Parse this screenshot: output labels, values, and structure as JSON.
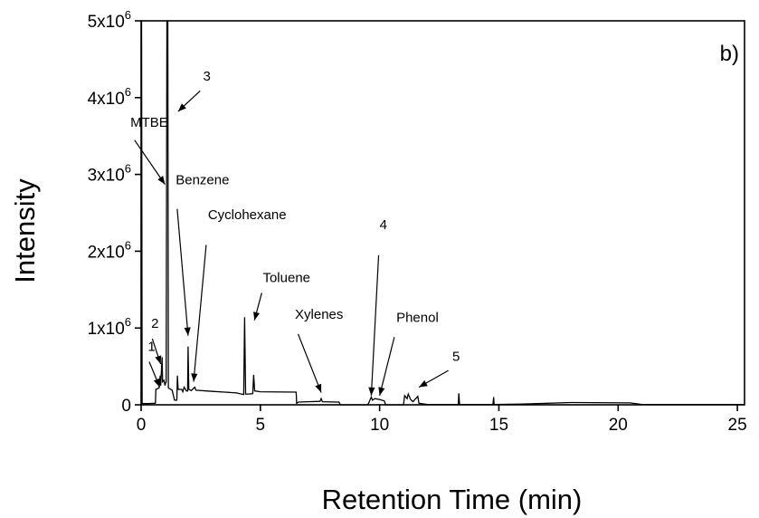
{
  "chart_data": {
    "type": "line",
    "panel_label": "b)",
    "xlabel": "Retention Time  (min)",
    "ylabel": "Intensity",
    "xlim": [
      0,
      25.3
    ],
    "ylim": [
      0,
      5000000
    ],
    "x_ticks": [
      {
        "value": 0,
        "label": "0"
      },
      {
        "value": 5,
        "label": "5"
      },
      {
        "value": 10,
        "label": "10"
      },
      {
        "value": 15,
        "label": "15"
      },
      {
        "value": 20,
        "label": "20"
      },
      {
        "value": 25,
        "label": "25"
      }
    ],
    "y_ticks": [
      {
        "value": 0,
        "label_base": "0",
        "label_exp": ""
      },
      {
        "value": 1000000,
        "label_base": "1x10",
        "label_exp": "6"
      },
      {
        "value": 2000000,
        "label_base": "2x10",
        "label_exp": "6"
      },
      {
        "value": 3000000,
        "label_base": "3x10",
        "label_exp": "6"
      },
      {
        "value": 4000000,
        "label_base": "4x10",
        "label_exp": "6"
      },
      {
        "value": 5000000,
        "label_base": "5x10",
        "label_exp": "6"
      }
    ],
    "grid": false,
    "series": [
      {
        "color": "#000000",
        "points": [
          [
            0,
            5000000
          ],
          [
            0.02,
            5000000
          ],
          [
            0.04,
            15000
          ],
          [
            0.3,
            15000
          ],
          [
            0.6,
            20000
          ],
          [
            0.62,
            200000
          ],
          [
            0.75,
            220000
          ],
          [
            0.8,
            380000
          ],
          [
            0.82,
            250000
          ],
          [
            0.88,
            620000
          ],
          [
            0.9,
            300000
          ],
          [
            0.96,
            320000
          ],
          [
            1.0,
            250000
          ],
          [
            1.02,
            280000
          ],
          [
            1.05,
            300000
          ],
          [
            1.08,
            5000000
          ],
          [
            1.12,
            5000000
          ],
          [
            1.14,
            220000
          ],
          [
            1.3,
            190000
          ],
          [
            1.4,
            60000
          ],
          [
            1.5,
            60000
          ],
          [
            1.52,
            380000
          ],
          [
            1.55,
            200000
          ],
          [
            1.7,
            200000
          ],
          [
            1.75,
            170000
          ],
          [
            1.8,
            230000
          ],
          [
            1.9,
            180000
          ],
          [
            1.95,
            180000
          ],
          [
            1.97,
            760000
          ],
          [
            2.0,
            200000
          ],
          [
            2.1,
            185000
          ],
          [
            2.25,
            230000
          ],
          [
            2.3,
            190000
          ],
          [
            3.0,
            175000
          ],
          [
            3.5,
            165000
          ],
          [
            4.0,
            155000
          ],
          [
            4.2,
            140000
          ],
          [
            4.3,
            135000
          ],
          [
            4.34,
            1140000
          ],
          [
            4.38,
            140000
          ],
          [
            4.5,
            140000
          ],
          [
            4.68,
            145000
          ],
          [
            4.72,
            390000
          ],
          [
            4.76,
            180000
          ],
          [
            5.0,
            170000
          ],
          [
            6.5,
            165000
          ],
          [
            6.52,
            20000
          ],
          [
            6.6,
            35000
          ],
          [
            7.0,
            40000
          ],
          [
            7.5,
            45000
          ],
          [
            7.55,
            80000
          ],
          [
            7.6,
            40000
          ],
          [
            8.3,
            35000
          ],
          [
            8.35,
            0
          ],
          [
            9.5,
            0
          ],
          [
            9.55,
            30000
          ],
          [
            9.65,
            100000
          ],
          [
            9.7,
            60000
          ],
          [
            9.8,
            80000
          ],
          [
            10.0,
            70000
          ],
          [
            10.2,
            50000
          ],
          [
            10.25,
            0
          ],
          [
            11.0,
            0
          ],
          [
            11.05,
            120000
          ],
          [
            11.15,
            80000
          ],
          [
            11.2,
            140000
          ],
          [
            11.3,
            70000
          ],
          [
            11.4,
            40000
          ],
          [
            11.6,
            110000
          ],
          [
            11.65,
            20000
          ],
          [
            12.0,
            5000
          ],
          [
            13.3,
            5000
          ],
          [
            13.32,
            150000
          ],
          [
            13.35,
            5000
          ],
          [
            14.75,
            5000
          ],
          [
            14.78,
            100000
          ],
          [
            14.8,
            5000
          ],
          [
            16.0,
            10000
          ],
          [
            18.0,
            30000
          ],
          [
            20.5,
            25000
          ],
          [
            21.0,
            5000
          ],
          [
            25.3,
            5000
          ]
        ]
      }
    ],
    "annotations": [
      {
        "label": "1",
        "tx": 0.28,
        "ty": 700000,
        "ax": 0.78,
        "ay": 230000
      },
      {
        "label": "2",
        "tx": 0.42,
        "ty": 1000000,
        "ax": 0.82,
        "ay": 530000
      },
      {
        "label": "3",
        "tx": 2.6,
        "ty": 4220000,
        "ax": 1.55,
        "ay": 3820000
      },
      {
        "label": "MTBE",
        "tx": -0.45,
        "ty": 3620000,
        "ax": 1.0,
        "ay": 2870000
      },
      {
        "label": "Benzene",
        "tx": 1.45,
        "ty": 2870000,
        "ax": 1.97,
        "ay": 900000
      },
      {
        "label": "Cyclohexane",
        "tx": 2.8,
        "ty": 2420000,
        "ax": 2.2,
        "ay": 300000
      },
      {
        "label": "Toluene",
        "tx": 5.1,
        "ty": 1600000,
        "ax": 4.75,
        "ay": 1100000
      },
      {
        "label": "Xylenes",
        "tx": 6.45,
        "ty": 1120000,
        "ax": 7.55,
        "ay": 160000
      },
      {
        "label": "4",
        "tx": 10.0,
        "ty": 2290000,
        "ax": 9.65,
        "ay": 120000
      },
      {
        "label": "Phenol",
        "tx": 10.7,
        "ty": 1080000,
        "ax": 10.0,
        "ay": 120000
      },
      {
        "label": "5",
        "tx": 13.05,
        "ty": 570000,
        "ax": 11.65,
        "ay": 230000
      }
    ]
  }
}
